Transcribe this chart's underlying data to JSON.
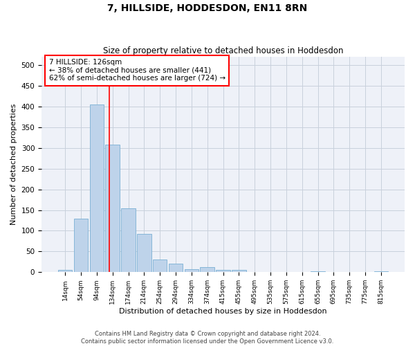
{
  "title": "7, HILLSIDE, HODDESDON, EN11 8RN",
  "subtitle": "Size of property relative to detached houses in Hoddesdon",
  "xlabel": "Distribution of detached houses by size in Hoddesdon",
  "ylabel": "Number of detached properties",
  "bar_color": "#bed3ea",
  "bar_edge_color": "#7aafd4",
  "grid_color": "#c8d0dc",
  "background_color": "#eef1f8",
  "categories": [
    "14sqm",
    "54sqm",
    "94sqm",
    "134sqm",
    "174sqm",
    "214sqm",
    "254sqm",
    "294sqm",
    "334sqm",
    "374sqm",
    "415sqm",
    "455sqm",
    "495sqm",
    "535sqm",
    "575sqm",
    "615sqm",
    "655sqm",
    "695sqm",
    "735sqm",
    "775sqm",
    "815sqm"
  ],
  "values": [
    6,
    130,
    405,
    308,
    155,
    92,
    30,
    21,
    8,
    12,
    5,
    6,
    0,
    0,
    0,
    0,
    3,
    0,
    0,
    0,
    3
  ],
  "ylim": [
    0,
    520
  ],
  "yticks": [
    0,
    50,
    100,
    150,
    200,
    250,
    300,
    350,
    400,
    450,
    500
  ],
  "annotation_box_text": "7 HILLSIDE: 126sqm\n← 38% of detached houses are smaller (441)\n62% of semi-detached houses are larger (724) →",
  "footer_line1": "Contains HM Land Registry data © Crown copyright and database right 2024.",
  "footer_line2": "Contains public sector information licensed under the Open Government Licence v3.0."
}
